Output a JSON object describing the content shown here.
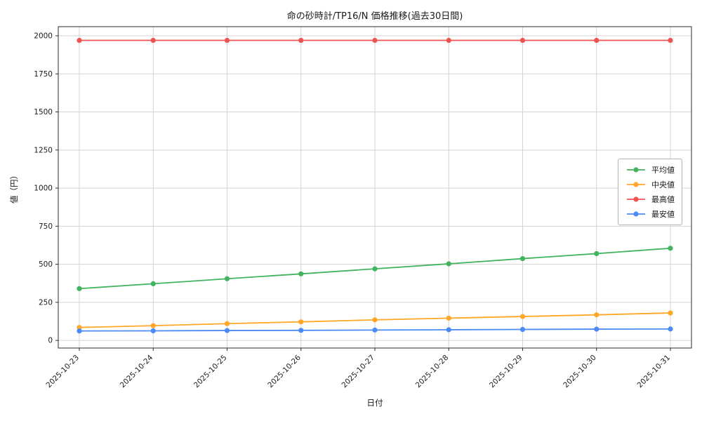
{
  "chart_data": {
    "type": "line",
    "title": "命の砂時計/TP16/N 価格推移(過去30日間)",
    "xlabel": "日付",
    "ylabel": "値（円）",
    "categories": [
      "2025-10-23",
      "2025-10-24",
      "2025-10-25",
      "2025-10-26",
      "2025-10-27",
      "2025-10-28",
      "2025-10-29",
      "2025-10-30",
      "2025-10-31"
    ],
    "series": [
      {
        "name": "平均値",
        "color": "#42b35f",
        "values": [
          340,
          372,
          405,
          437,
          470,
          503,
          537,
          570,
          605
        ]
      },
      {
        "name": "中央値",
        "color": "#ffa726",
        "values": [
          85,
          97,
          110,
          122,
          135,
          146,
          157,
          168,
          180
        ]
      },
      {
        "name": "最高値",
        "color": "#ef5350",
        "values": [
          1970,
          1970,
          1970,
          1970,
          1970,
          1970,
          1970,
          1970,
          1970
        ]
      },
      {
        "name": "最安値",
        "color": "#4c8bf5",
        "values": [
          62,
          63,
          65,
          66,
          68,
          70,
          72,
          74,
          75
        ]
      }
    ],
    "yticks": [
      0,
      250,
      500,
      750,
      1000,
      1250,
      1500,
      1750,
      2000
    ],
    "ylim": [
      -50,
      2060
    ],
    "grid": true,
    "legend_position": "center right",
    "grid_color": "#d3d3d3",
    "spine_color": "#2b2b2b",
    "text_color": "#1a1a1a"
  }
}
